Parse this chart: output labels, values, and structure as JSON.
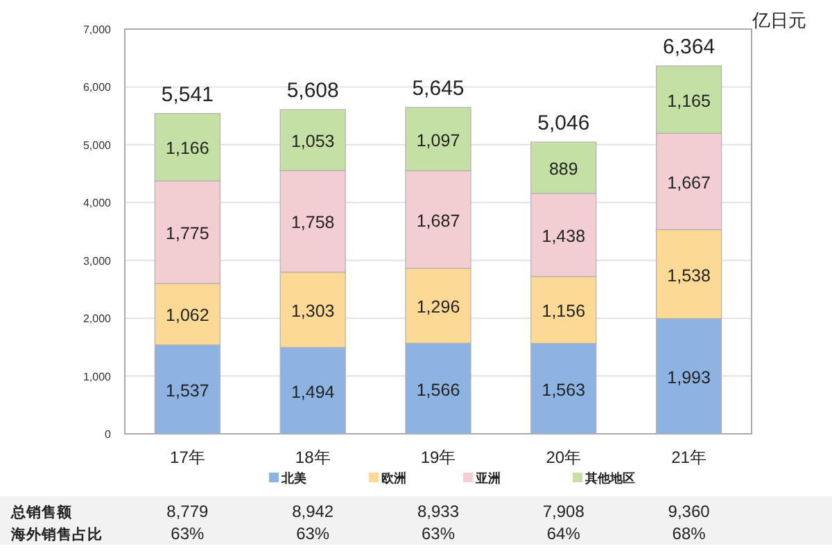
{
  "chart_data": {
    "type": "bar",
    "stacked": true,
    "ylabel": "亿日元",
    "categories": [
      "17年",
      "18年",
      "19年",
      "20年",
      "21年"
    ],
    "series": [
      {
        "name": "北美",
        "color": "#8db3e2",
        "values": [
          1537,
          1494,
          1566,
          1563,
          1993
        ],
        "value_labels": [
          "1,537",
          "1,494",
          "1,566",
          "1,563",
          "1,993"
        ]
      },
      {
        "name": "欧洲",
        "color": "#fcd995",
        "values": [
          1062,
          1303,
          1296,
          1156,
          1538
        ],
        "value_labels": [
          "1,062",
          "1,303",
          "1,296",
          "1,156",
          "1,538"
        ]
      },
      {
        "name": "亚洲",
        "color": "#f2cdd2",
        "values": [
          1775,
          1758,
          1687,
          1438,
          1667
        ],
        "value_labels": [
          "1,775",
          "1,758",
          "1,687",
          "1,438",
          "1,667"
        ]
      },
      {
        "name": "其他地区",
        "color": "#c5e0a5",
        "values": [
          1166,
          1053,
          1097,
          889,
          1165
        ],
        "value_labels": [
          "1,166",
          "1,053",
          "1,097",
          "889",
          "1,165"
        ]
      }
    ],
    "totals": [
      "5,541",
      "5,608",
      "5,645",
      "5,046",
      "6,364"
    ],
    "ylim": [
      0,
      7000
    ],
    "yticks": [
      0,
      {
        "value": 1000,
        "label": "1,000"
      },
      {
        "value": 2000,
        "label": "2,000"
      },
      {
        "value": 3000,
        "label": "3,000"
      },
      {
        "value": 4000,
        "label": "4,000"
      },
      {
        "value": 5000,
        "label": "5,000"
      },
      {
        "value": 6000,
        "label": "6,000"
      },
      {
        "value": 7000,
        "label": "7,000"
      }
    ],
    "grid": "y",
    "legend": "bottom",
    "annotations": [
      "总销售额",
      "8,779",
      "8,942",
      "8,933",
      "7,908",
      "9,360",
      "海外销售占比",
      "63%",
      "63%",
      "63%",
      "64%",
      "68%"
    ]
  }
}
